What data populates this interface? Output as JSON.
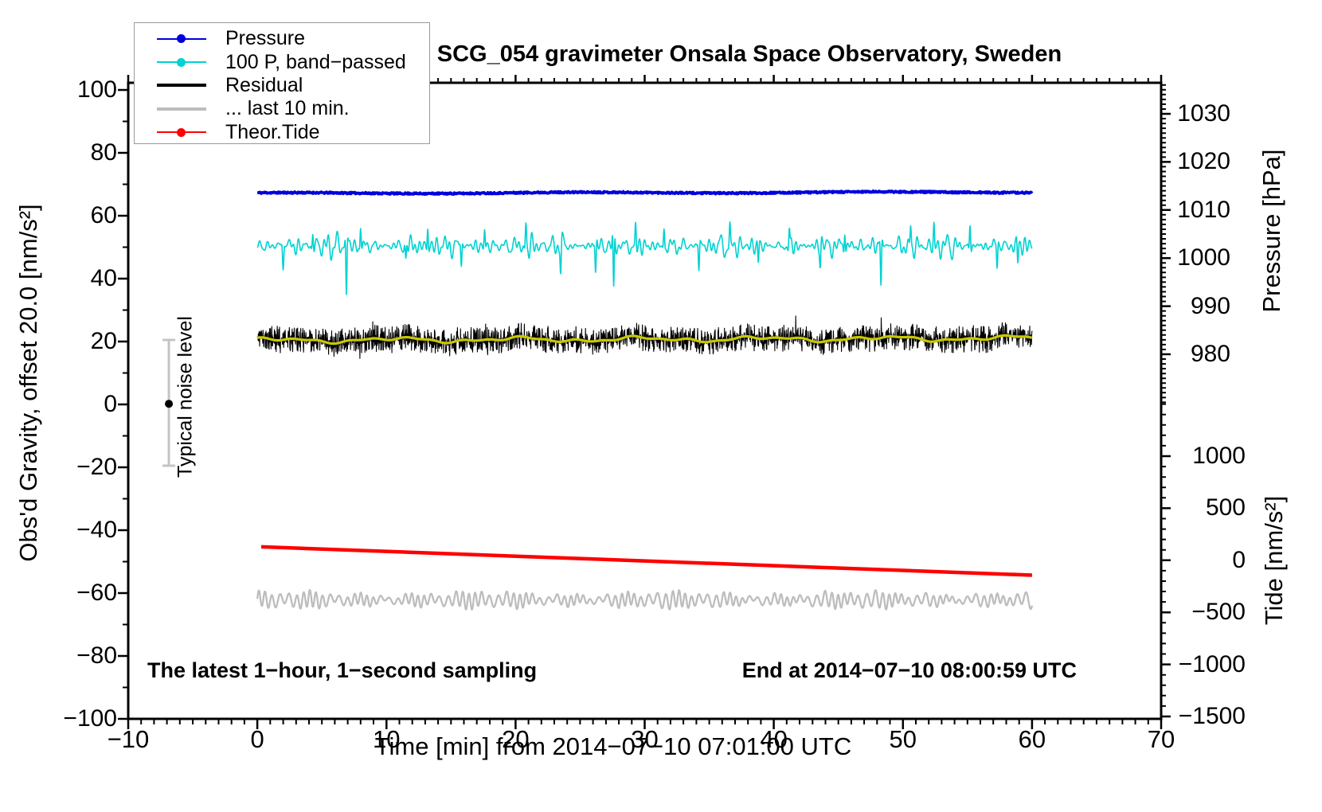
{
  "title": "SCG_054 gravimeter Onsala Space Observatory, Sweden",
  "annotations": {
    "sampling": "The latest 1−hour, 1−second sampling",
    "end": "End at 2014−07−10 08:00:59 UTC",
    "noise": "Typical noise level"
  },
  "legend": {
    "items": [
      {
        "label": "Pressure",
        "color": "#0000dd",
        "marker": "line-dot",
        "line_width": 2
      },
      {
        "label": "100 P, band−passed",
        "color": "#00d2d2",
        "marker": "line-dot",
        "line_width": 2
      },
      {
        "label": "Residual",
        "color": "#000000",
        "marker": "line",
        "line_width": 4
      },
      {
        "label": "... last 10 min.",
        "color": "#bdbdbd",
        "marker": "line",
        "line_width": 4
      },
      {
        "label": "Theor.Tide",
        "color": "#ff0000",
        "marker": "line-dot",
        "line_width": 2
      }
    ]
  },
  "chart_data": {
    "type": "line",
    "title": "SCG_054 gravimeter Onsala Space Observatory, Sweden",
    "grid": false,
    "legend_position": "top-left",
    "axes": {
      "x": {
        "label": "Time [min] from 2014−07−10 07:01:00 UTC",
        "min": -10,
        "max": 70,
        "major_ticks": [
          -10,
          0,
          10,
          20,
          30,
          40,
          50,
          60,
          70
        ],
        "minor_tick_step": 1
      },
      "gravity": {
        "label": "Obs'd Gravity, offset 20.0 [nm/s²]",
        "min": -100,
        "max": 100,
        "major_ticks": [
          100,
          80,
          60,
          40,
          20,
          0,
          -20,
          -40,
          -60,
          -80,
          -100
        ],
        "minor_tick_step": 10
      },
      "pressure": {
        "label": "Pressure [hPa]",
        "top_value": 1036.5,
        "bottom_value": 970,
        "major_ticks": [
          1030,
          1020,
          1010,
          1000,
          990,
          980
        ],
        "minor_tick_step": 1
      },
      "tide": {
        "label": "Tide [nm/s²]",
        "top_value": 1500,
        "bottom_value": -1500,
        "major_ticks": [
          1000,
          500,
          0,
          -500,
          -1000,
          -1500
        ],
        "minor_tick_step": 100
      }
    },
    "series": [
      {
        "name": "Pressure",
        "color": "#0000dd",
        "axis": "pressure",
        "x_range_min": [
          0,
          60
        ],
        "mean_hpa": 1014.3,
        "gravity_equivalent": 67.3,
        "width": 3.8,
        "description": "nearly constant barometric pressure trace"
      },
      {
        "name": "100 P, band−passed",
        "color": "#00d2d2",
        "axis": "gravity",
        "x_range_min": [
          0,
          60
        ],
        "center": 50.4,
        "typical_amplitude": 3,
        "width": 1.6,
        "spikes": [
          [
            2.0,
            -6
          ],
          [
            4.3,
            5
          ],
          [
            6.9,
            -15
          ],
          [
            8.0,
            6
          ],
          [
            11.5,
            -5
          ],
          [
            13.2,
            6
          ],
          [
            15.8,
            -6
          ],
          [
            17.6,
            5
          ],
          [
            20.8,
            6
          ],
          [
            23.5,
            -7
          ],
          [
            26.2,
            -8
          ],
          [
            27.6,
            -15.5
          ],
          [
            29.3,
            6
          ],
          [
            31.5,
            5
          ],
          [
            34.2,
            -7
          ],
          [
            36.6,
            5
          ],
          [
            38.8,
            -5
          ],
          [
            41.2,
            5
          ],
          [
            43.6,
            -5
          ],
          [
            45.5,
            6
          ],
          [
            48.3,
            -12
          ],
          [
            50.6,
            5
          ],
          [
            52.4,
            6
          ],
          [
            55.2,
            7
          ],
          [
            57.3,
            -6
          ],
          [
            58.9,
            -5
          ]
        ]
      },
      {
        "name": "Residual",
        "color": "#000000",
        "axis": "gravity",
        "x_range_min": [
          0,
          60
        ],
        "center": 20.4,
        "typical_amplitude": 2.5,
        "width": 1.1
      },
      {
        "name": "Residual smoothed",
        "color": "#c8c800",
        "axis": "gravity",
        "x_range_min": [
          0,
          60
        ],
        "center": 20.4,
        "typical_amplitude": 0.8,
        "width": 3.2
      },
      {
        "name": "... last 10 min.",
        "color": "#bdbdbd",
        "axis": "gravity",
        "x_range_min": [
          0,
          60
        ],
        "center": -62.2,
        "typical_amplitude": 2.6,
        "width": 2.3
      },
      {
        "name": "Theor.Tide",
        "color": "#ff0000",
        "axis": "gravity",
        "x_range_min": [
          0.3,
          60
        ],
        "start_value": -45.3,
        "end_value": -54.3,
        "tide_axis_start": 160,
        "tide_axis_end": -105,
        "width": 4.5
      }
    ],
    "noise_bar": {
      "x_min": -6.85,
      "gravity_low": -19.5,
      "gravity_high": 20.5,
      "dot_gravity": 0.2
    }
  }
}
